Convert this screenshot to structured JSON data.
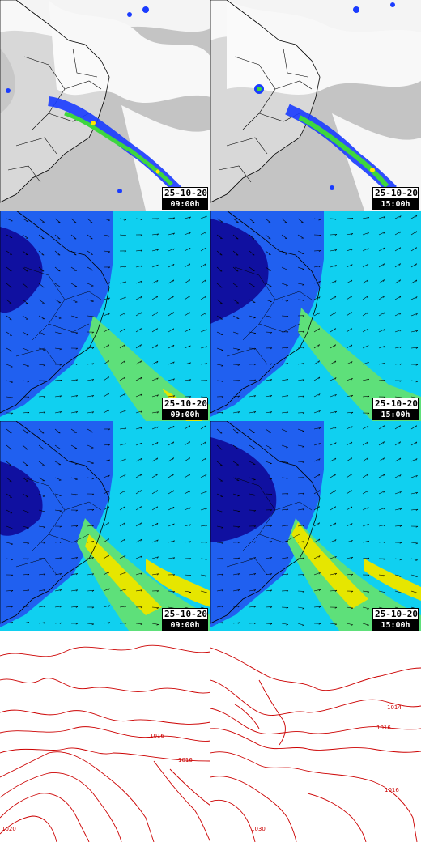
{
  "panels": {
    "satellite_0900": {
      "date": "25-10-20",
      "time": "09:00h"
    },
    "satellite_1500": {
      "date": "25-10-20",
      "time": "15:00h"
    },
    "wind_low_0900": {
      "date": "25-10-20",
      "time": "09:00h"
    },
    "wind_low_1500": {
      "date": "25-10-20",
      "time": "15:00h"
    },
    "wind_high_0900": {
      "date": "25-10-20",
      "time": "09:00h"
    },
    "wind_high_1500": {
      "date": "25-10-20",
      "time": "15:00h"
    }
  },
  "isobar_labels": {
    "left": [
      "1016",
      "1016",
      "1020"
    ],
    "right": [
      "1014",
      "1016",
      "1016",
      "1030"
    ]
  },
  "colors": {
    "cloud_gray": "#b3b3b3",
    "precip_blue": "#1a3cff",
    "precip_green": "#3ed63e",
    "precip_yellow": "#ffe600",
    "wind_deep": "#1010a0",
    "wind_mid": "#2060f0",
    "wind_cyan": "#10d0f0",
    "wind_green": "#5ee07a",
    "wind_yellow": "#e6e600",
    "isobar_red": "#cc0000"
  }
}
